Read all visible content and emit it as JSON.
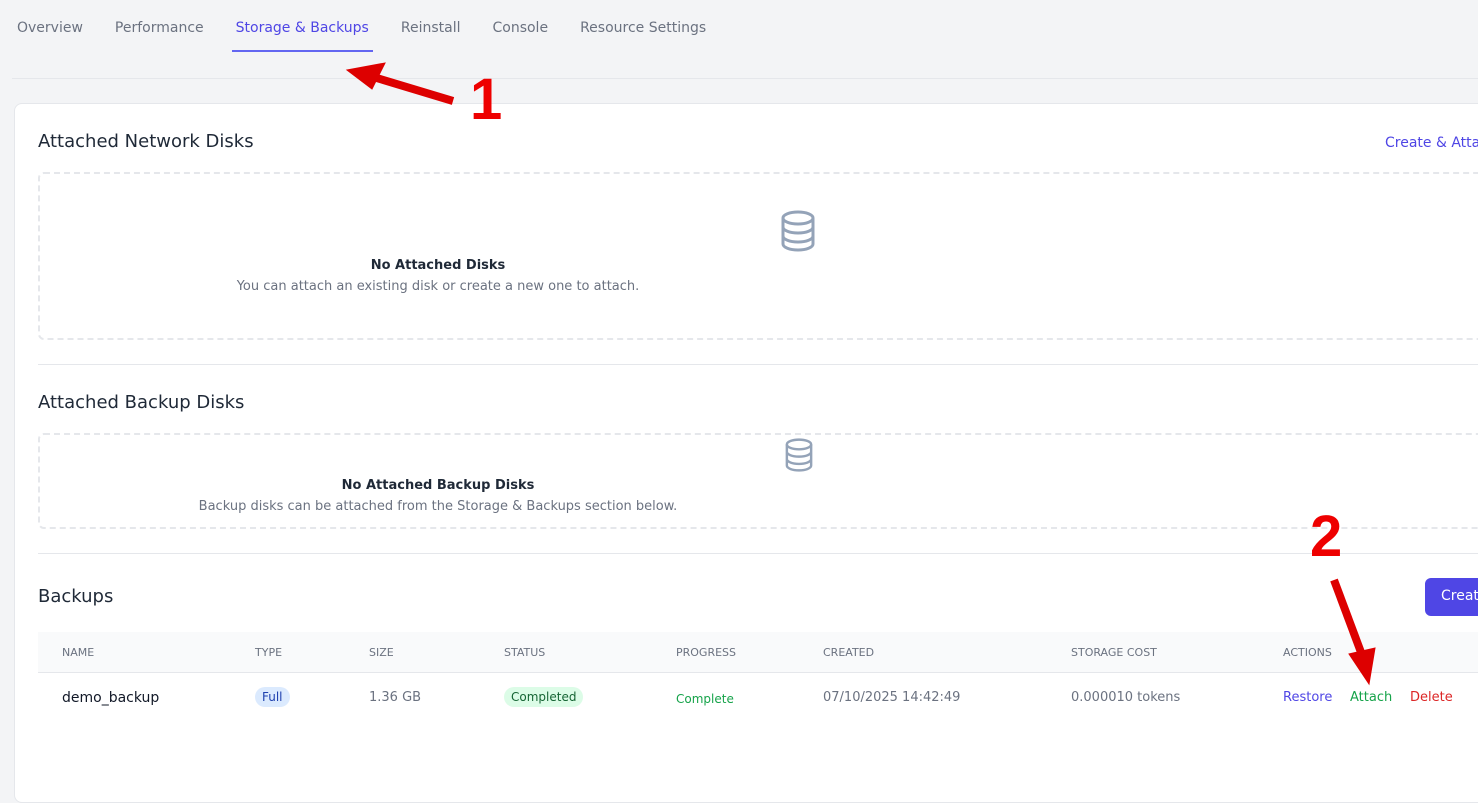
{
  "tabs": [
    "Overview",
    "Performance",
    "Storage & Backups",
    "Reinstall",
    "Console",
    "Resource Settings"
  ],
  "active_tab": "Storage & Backups",
  "network_disks": {
    "title": "Attached Network Disks",
    "action": "Create & Attach",
    "empty_title": "No Attached Disks",
    "empty_text": "You can attach an existing disk or create a new one to attach.",
    "icon": "database-icon"
  },
  "backup_disks": {
    "title": "Attached Backup Disks",
    "empty_title": "No Attached Backup Disks",
    "empty_text": "Backup disks can be attached from the Storage & Backups section below.",
    "icon": "database-icon"
  },
  "backups": {
    "title": "Backups",
    "create_label": "Create Backup",
    "columns": [
      "NAME",
      "TYPE",
      "SIZE",
      "STATUS",
      "PROGRESS",
      "CREATED",
      "STORAGE COST",
      "ACTIONS"
    ],
    "rows": [
      {
        "name": "demo_backup",
        "type": "Full",
        "size": "1.36 GB",
        "status": "Completed",
        "progress": "Complete",
        "created": "07/10/2025 14:42:49",
        "cost": "0.000010 tokens",
        "actions": [
          "Restore",
          "Attach",
          "Delete"
        ]
      }
    ]
  },
  "annotations": [
    "1",
    "2"
  ],
  "colors": {
    "accent": "#4f46e5",
    "success": "#16a34a",
    "danger": "#dc2626",
    "annotation": "#ee0000"
  }
}
